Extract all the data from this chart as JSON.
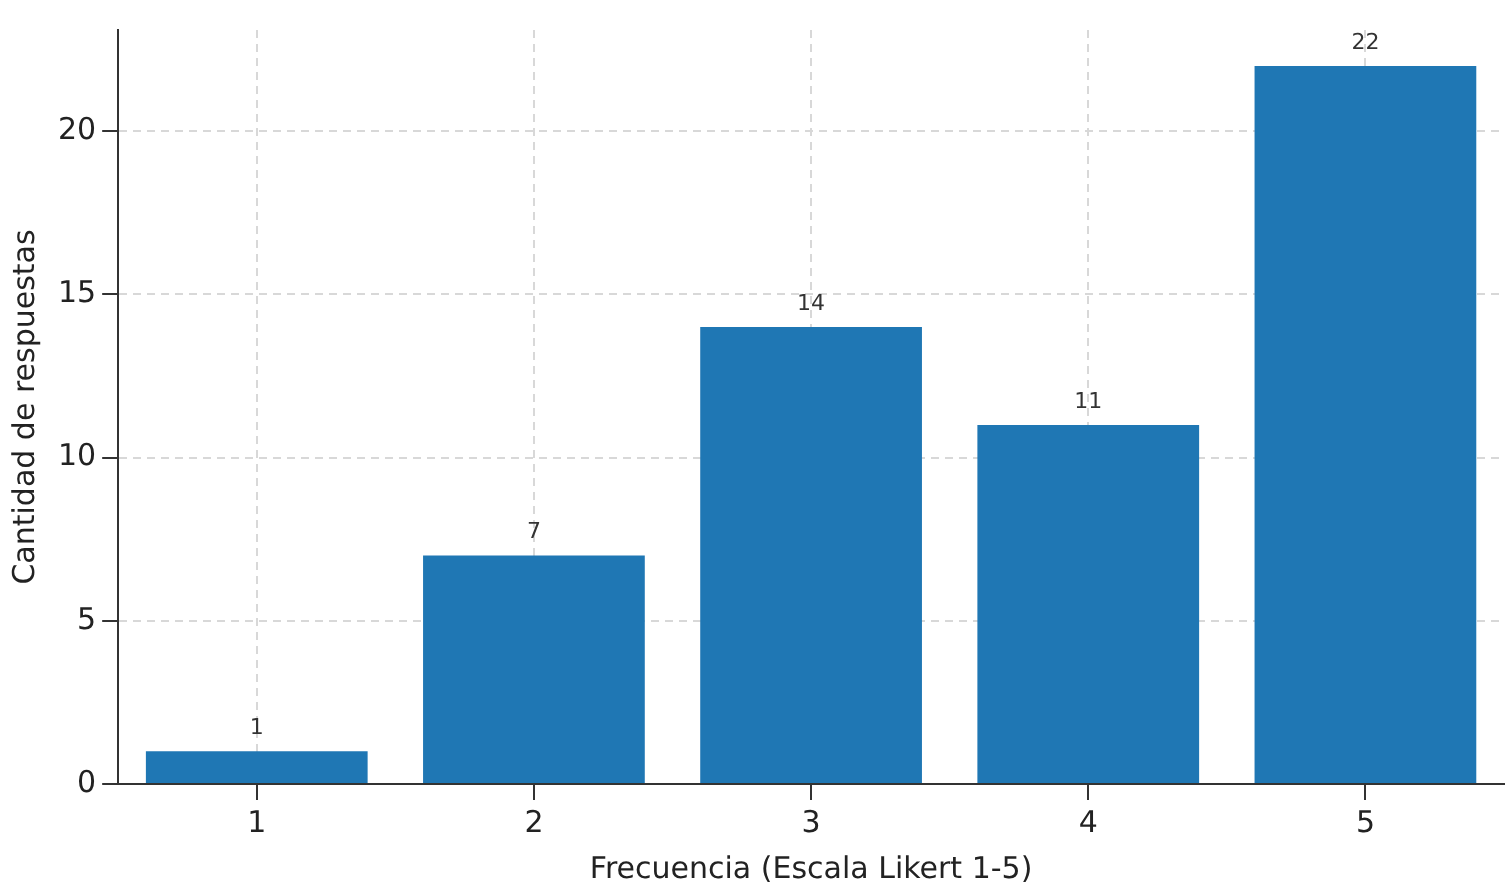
{
  "chart_data": {
    "type": "bar",
    "xlabel": "Frecuencia (Escala Likert 1-5)",
    "ylabel": "Cantidad de respuestas",
    "categories": [
      "1",
      "2",
      "3",
      "4",
      "5"
    ],
    "values": [
      1,
      7,
      14,
      11,
      22
    ],
    "color": "#1f77b4",
    "ylim": [
      0,
      23.1
    ],
    "yticks": [
      0,
      5,
      10,
      15,
      20
    ],
    "grid": true,
    "data_labels": true
  }
}
